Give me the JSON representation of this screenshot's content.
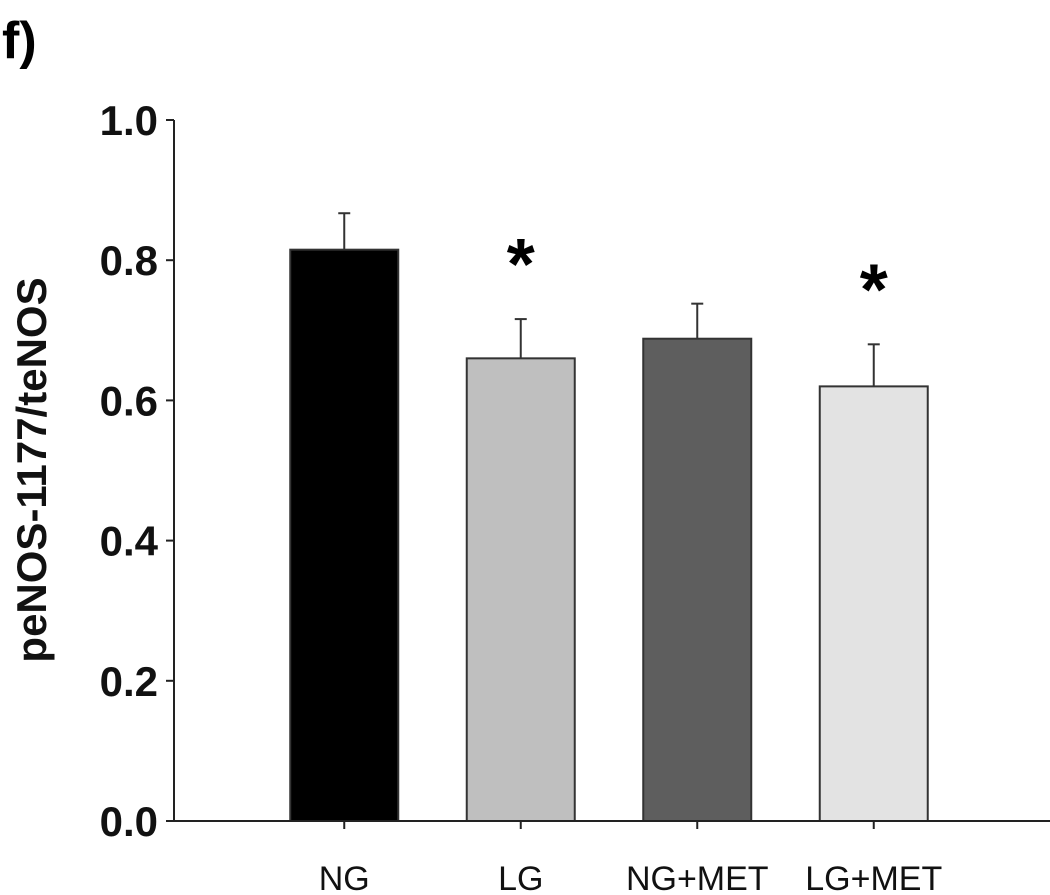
{
  "panel_label": "f)",
  "chart_data": {
    "type": "bar",
    "categories": [
      "NG",
      "LG",
      "NG+MET",
      "LG+MET"
    ],
    "values": [
      0.815,
      0.66,
      0.688,
      0.62
    ],
    "errors": [
      0.052,
      0.056,
      0.05,
      0.06
    ],
    "significance": [
      "",
      "*",
      "",
      "*"
    ],
    "colors": [
      "#000000",
      "#bfbfbf",
      "#5e5e5e",
      "#e3e3e3"
    ],
    "title": "",
    "xlabel": "",
    "ylabel": "peNOS-1177/teNOS",
    "ylim": [
      0,
      1.0
    ],
    "yticks": [
      0.0,
      0.2,
      0.4,
      0.6,
      0.8,
      1.0
    ],
    "ytick_labels": [
      "0.0",
      "0.2",
      "0.4",
      "0.6",
      "0.8",
      "1.0"
    ],
    "grid": false,
    "legend": "none"
  }
}
